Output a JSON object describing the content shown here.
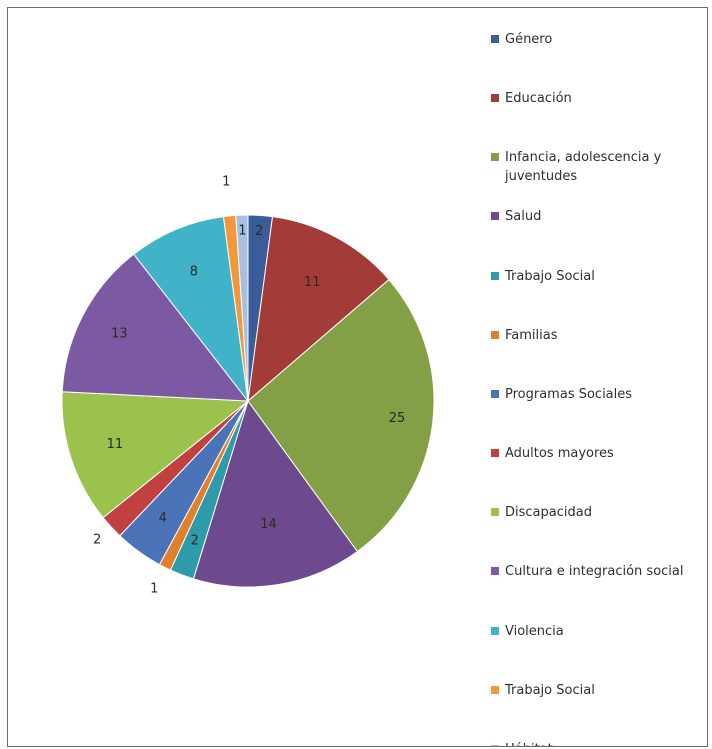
{
  "chart_data": {
    "type": "pie",
    "slices": [
      {
        "label": "Género",
        "value": 2,
        "color": "#3a5d9a"
      },
      {
        "label": "Educación",
        "value": 11,
        "color": "#a33b39"
      },
      {
        "label": "Infancia, adolescencia y juventudes",
        "value": 25,
        "color": "#84a046"
      },
      {
        "label": "Salud",
        "value": 14,
        "color": "#6c4a8d"
      },
      {
        "label": "Trabajo Social",
        "value": 2,
        "color": "#2f9aa9"
      },
      {
        "label": "Familias",
        "value": 1,
        "color": "#e07f2d"
      },
      {
        "label": "Programas Sociales",
        "value": 4,
        "color": "#4b74b8"
      },
      {
        "label": "Adultos mayores",
        "value": 2,
        "color": "#c0413f"
      },
      {
        "label": "Discapacidad",
        "value": 11,
        "color": "#9ac24d"
      },
      {
        "label": "Cultura e integración social",
        "value": 13,
        "color": "#7c5aa3"
      },
      {
        "label": "Violencia",
        "value": 8,
        "color": "#40b3c8"
      },
      {
        "label": "Trabajo Social",
        "value": 1,
        "color": "#f2973a"
      },
      {
        "label": "Hábitat",
        "value": 1,
        "color": "#a9bfdf"
      }
    ],
    "legend_position": "right"
  }
}
